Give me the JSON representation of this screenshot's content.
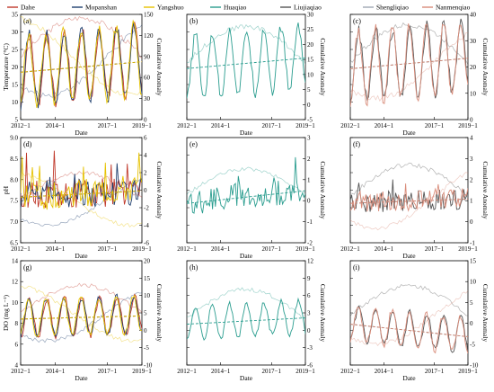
{
  "legend": [
    {
      "name": "Dahe",
      "color": "#c0392b"
    },
    {
      "name": "Mopanshan",
      "color": "#1f3f6e"
    },
    {
      "name": "Yangshuo",
      "color": "#e6c200"
    },
    {
      "name": "Huaqiao",
      "color": "#2a9d8f"
    },
    {
      "name": "Liujiaqiao",
      "color": "#555555"
    },
    {
      "name": "Shengliqiao",
      "color": "#9fa8b3"
    },
    {
      "name": "Nanmenqiao",
      "color": "#d98c7a"
    }
  ],
  "x_axis": {
    "label": "Date",
    "ticks": [
      "2012−1",
      "2014−1",
      "2017−1",
      "2019−1"
    ]
  },
  "right_axis_label": "Cumulative Anomaly",
  "chart_data": [
    {
      "panel": "(a)",
      "type": "line",
      "ylabel": "Temperature (°C)",
      "ylim": [
        5,
        35
      ],
      "yticks": [
        "5",
        "10",
        "15",
        "20",
        "25",
        "30",
        "35"
      ],
      "y2ticks": [
        "0",
        "30",
        "60",
        "90",
        "120",
        "150"
      ],
      "y2lim": [
        0,
        150
      ],
      "stations": [
        "Dahe",
        "Mopanshan",
        "Yangshuo"
      ],
      "amplitude": 10,
      "mean": 19,
      "trend": 3,
      "seasonal": true,
      "anom_mean": 90,
      "anom_spread": 55
    },
    {
      "panel": "(b)",
      "type": "line",
      "ylabel": "",
      "ylim": [
        5,
        35
      ],
      "yticks": [],
      "y2ticks": [
        "-5",
        "0",
        "5",
        "10",
        "15",
        "20",
        "25",
        "30"
      ],
      "y2lim": [
        -5,
        30
      ],
      "stations": [
        "Huaqiao"
      ],
      "amplitude": 9,
      "mean": 20,
      "trend": 3,
      "seasonal": true,
      "anom_mean": 14,
      "anom_spread": 12
    },
    {
      "panel": "(c)",
      "type": "line",
      "ylabel": "",
      "ylim": [
        5,
        35
      ],
      "yticks": [],
      "y2ticks": [
        "0",
        "10",
        "20",
        "30",
        "40"
      ],
      "y2lim": [
        0,
        40
      ],
      "stations": [
        "Liujiaqiao",
        "Nanmenqiao"
      ],
      "amplitude": 10,
      "mean": 20,
      "trend": 3,
      "seasonal": true,
      "anom_mean": 22,
      "anom_spread": 14
    },
    {
      "panel": "(d)",
      "type": "line",
      "ylabel": "pH",
      "ylim": [
        6.5,
        9.0
      ],
      "yticks": [
        "6.5",
        "7.0",
        "7.5",
        "8.0",
        "8.5",
        "9.0"
      ],
      "y2ticks": [
        "-6",
        "-4",
        "-2",
        "0",
        "2",
        "4",
        "6"
      ],
      "y2lim": [
        -6,
        6
      ],
      "stations": [
        "Dahe",
        "Mopanshan",
        "Yangshuo"
      ],
      "amplitude": 0.35,
      "mean": 7.6,
      "trend": 0.15,
      "seasonal": false,
      "anom_mean": -1,
      "anom_spread": 3
    },
    {
      "panel": "(e)",
      "type": "line",
      "ylabel": "",
      "ylim": [
        6.5,
        9.0
      ],
      "yticks": [],
      "y2ticks": [
        "-2",
        "-1",
        "0",
        "1",
        "2",
        "3"
      ],
      "y2lim": [
        -2,
        3
      ],
      "stations": [
        "Huaqiao"
      ],
      "amplitude": 0.3,
      "mean": 7.45,
      "trend": 0.3,
      "seasonal": false,
      "anom_mean": 0.3,
      "anom_spread": 1.2
    },
    {
      "panel": "(f)",
      "type": "line",
      "ylabel": "",
      "ylim": [
        6.5,
        9.0
      ],
      "yticks": [],
      "y2ticks": [
        "-1",
        "0",
        "1",
        "2",
        "3",
        "4"
      ],
      "y2lim": [
        -1,
        4
      ],
      "stations": [
        "Liujiaqiao",
        "Nanmenqiao"
      ],
      "amplitude": 0.25,
      "mean": 7.45,
      "trend": 0.1,
      "seasonal": false,
      "anom_mean": 1.2,
      "anom_spread": 1.5
    },
    {
      "panel": "(g)",
      "type": "line",
      "ylabel": "DO (mg L⁻¹)",
      "ylim": [
        4,
        14
      ],
      "yticks": [
        "4",
        "6",
        "8",
        "10",
        "12",
        "14"
      ],
      "y2ticks": [
        "-10",
        "-5",
        "0",
        "5",
        "10",
        "15",
        "20"
      ],
      "y2lim": [
        -10,
        20
      ],
      "stations": [
        "Dahe",
        "Mopanshan",
        "Yangshuo"
      ],
      "amplitude": 1.8,
      "mean": 8.5,
      "trend": 0.3,
      "seasonal": true,
      "anom_mean": 5,
      "anom_spread": 8
    },
    {
      "panel": "(h)",
      "type": "line",
      "ylabel": "",
      "ylim": [
        4,
        14
      ],
      "yticks": [],
      "y2ticks": [
        "-6",
        "-3",
        "0",
        "3",
        "6",
        "9",
        "12"
      ],
      "y2lim": [
        -6,
        12
      ],
      "stations": [
        "Huaqiao"
      ],
      "amplitude": 1.6,
      "mean": 8,
      "trend": 0.6,
      "seasonal": true,
      "anom_mean": 2,
      "anom_spread": 5
    },
    {
      "panel": "(i)",
      "type": "line",
      "ylabel": "",
      "ylim": [
        4,
        14
      ],
      "yticks": [],
      "y2ticks": [
        "-10",
        "-5",
        "0",
        "5",
        "10",
        "15"
      ],
      "y2lim": [
        -10,
        15
      ],
      "stations": [
        "Liujiaqiao",
        "Nanmenqiao"
      ],
      "amplitude": 1.7,
      "mean": 8,
      "trend": -1.2,
      "seasonal": true,
      "anom_mean": 2,
      "anom_spread": 7
    }
  ]
}
